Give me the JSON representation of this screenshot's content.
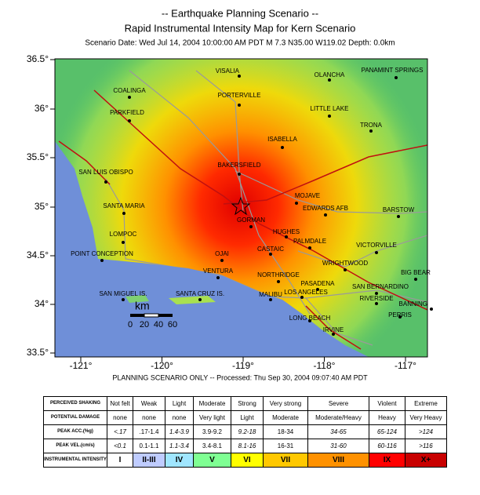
{
  "header": {
    "title": "-- Earthquake Planning Scenario --",
    "subtitle": "Rapid Instrumental Intensity Map for Kern Scenario",
    "info": "Scenario Date: Wed Jul 14, 2004 10:00:00 AM PDT   M 7.3   N35.00 W119.02   Depth: 0.0km"
  },
  "map": {
    "lat_ticks": [
      "36.5°",
      "36°",
      "35.5°",
      "35°",
      "34.5°",
      "34°",
      "33.5°"
    ],
    "lon_ticks": [
      "-121°",
      "-120°",
      "-119°",
      "-118°",
      "-117°"
    ],
    "cities": [
      "VISALIA",
      "PORTERVILLE",
      "OLANCHA",
      "PANAMINT SPRINGS",
      "LITTLE LAKE",
      "TRONA",
      "COALINGA",
      "PARKFIELD",
      "ISABELLA",
      "BAKERSFIELD",
      "SAN LUIS OBISPO",
      "SANTA MARIA",
      "MOJAVE",
      "EDWARDS AFB",
      "BARSTOW",
      "GORMAN",
      "LOMPOC",
      "HUGHES",
      "PALMDALE",
      "VICTORVILLE",
      "POINT CONCEPTION",
      "OJAI",
      "CASTAIC",
      "WRIGHTWOOD",
      "BIG BEAR",
      "VENTURA",
      "NORTHRIDGE",
      "PASADENA",
      "SAN BERNARDINO",
      "LOS ANGELES",
      "MALIBU",
      "RIVERSIDE",
      "BANNING",
      "SAN MIGUEL IS.",
      "SANTA CRUZ IS.",
      "LONG BEACH",
      "PERRIS",
      "IRVINE"
    ],
    "scale": {
      "unit": "km",
      "ticks": [
        "0",
        "20",
        "40",
        "60"
      ]
    }
  },
  "footer": "PLANNING SCENARIO ONLY -- Processed: Thu Sep 30, 2004 09:07:40 AM PDT",
  "legend": {
    "rows": [
      {
        "label": "PERCEIVED SHAKING",
        "cells": [
          "Not felt",
          "Weak",
          "Light",
          "Moderate",
          "Strong",
          "Very strong",
          "Severe",
          "Violent",
          "Extreme"
        ]
      },
      {
        "label": "POTENTIAL DAMAGE",
        "cells": [
          "none",
          "none",
          "none",
          "Very light",
          "Light",
          "Moderate",
          "Moderate/Heavy",
          "Heavy",
          "Very Heavy"
        ]
      },
      {
        "label": "PEAK ACC.(%g)",
        "cells": [
          "<.17",
          ".17-1.4",
          "1.4-3.9",
          "3.9-9.2",
          "9.2-18",
          "18-34",
          "34-65",
          "65-124",
          ">124"
        ]
      },
      {
        "label": "PEAK VEL.(cm/s)",
        "cells": [
          "<0.1",
          "0.1-1.1",
          "1.1-3.4",
          "3.4-8.1",
          "8.1-16",
          "16-31",
          "31-60",
          "60-116",
          ">116"
        ]
      },
      {
        "label": "INSTRUMENTAL INTENSITY",
        "cells": [
          "I",
          "II-III",
          "IV",
          "V",
          "VI",
          "VII",
          "VIII",
          "IX",
          "X+"
        ]
      }
    ]
  }
}
